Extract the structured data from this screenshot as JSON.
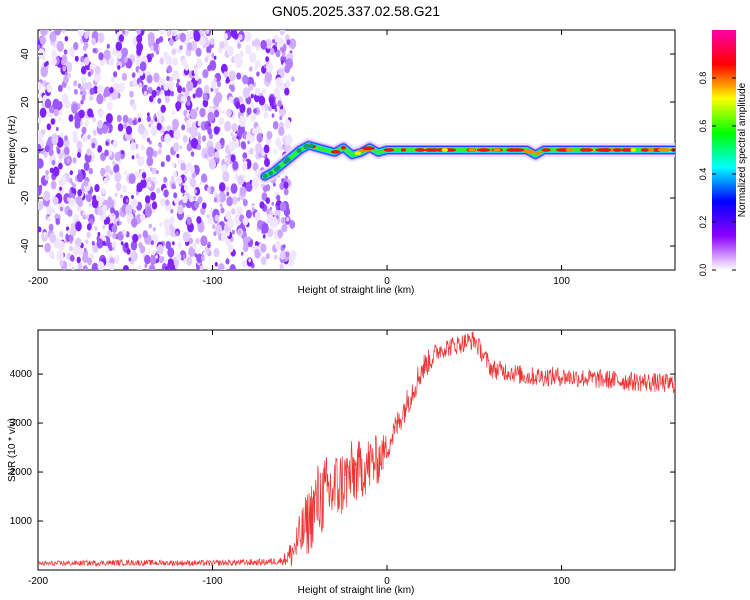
{
  "title": "GN05.2025.337.02.58.G21",
  "chart_data": [
    {
      "type": "heatmap",
      "name": "spectrogram",
      "xlabel": "Height of straight line (km)",
      "ylabel": "Frequency (Hz)",
      "xlim": [
        -200,
        165
      ],
      "ylim": [
        -50,
        50
      ],
      "xticks": [
        -200,
        -100,
        0,
        100
      ],
      "yticks": [
        -40,
        -20,
        0,
        20,
        40
      ],
      "noise_region_x": [
        -200,
        -57
      ],
      "signal_trace": {
        "x": [
          -70,
          -65,
          -60,
          -55,
          -50,
          -45,
          -40,
          -35,
          -30,
          -25,
          -20,
          -15,
          -10,
          -5,
          0,
          10,
          20,
          40,
          60,
          80,
          85,
          90,
          100,
          120,
          140,
          165
        ],
        "y": [
          -11,
          -9,
          -6,
          -3,
          0,
          2,
          1,
          0,
          -1,
          1,
          -2,
          -1,
          1,
          -1,
          0,
          0,
          0,
          0,
          0,
          0,
          -2,
          0,
          0,
          0,
          0,
          0
        ]
      },
      "colorbar": {
        "label": "Normalized spectral amplitude",
        "range": [
          0,
          1
        ],
        "ticks": [
          "0.0",
          "0.2",
          "0.4",
          "0.6",
          "0.8"
        ],
        "colors": [
          "#ffffff",
          "#8b00ff",
          "#0000ff",
          "#00ffff",
          "#00ff00",
          "#ffff00",
          "#ff0000",
          "#ff00aa"
        ]
      }
    },
    {
      "type": "line",
      "name": "snr",
      "xlabel": "Height of straight line (km)",
      "ylabel": "SNR (10 * v/v)",
      "xlim": [
        -200,
        165
      ],
      "ylim": [
        0,
        4900
      ],
      "xticks": [
        -200,
        -100,
        0,
        100
      ],
      "yticks": [
        1000,
        2000,
        3000,
        4000
      ],
      "color": "#ee3333",
      "series": [
        {
          "name": "SNR",
          "x": [
            -200,
            -150,
            -100,
            -70,
            -60,
            -55,
            -50,
            -45,
            -40,
            -35,
            -30,
            -25,
            -20,
            -15,
            -10,
            -5,
            0,
            10,
            20,
            30,
            40,
            50,
            55,
            60,
            70,
            80,
            100,
            120,
            140,
            165
          ],
          "y": [
            130,
            150,
            140,
            160,
            190,
            320,
            650,
            1000,
            1400,
            1550,
            1650,
            1800,
            1950,
            2050,
            2150,
            2250,
            2500,
            3300,
            4100,
            4500,
            4600,
            4700,
            4400,
            4100,
            4050,
            3950,
            3950,
            3900,
            3850,
            3800
          ],
          "noise_amplitude": [
            50,
            60,
            60,
            70,
            80,
            300,
            500,
            700,
            800,
            800,
            800,
            700,
            700,
            600,
            600,
            500,
            300,
            300,
            300,
            200,
            200,
            200,
            200,
            200,
            200,
            200,
            200,
            200,
            200,
            200
          ]
        }
      ]
    }
  ]
}
